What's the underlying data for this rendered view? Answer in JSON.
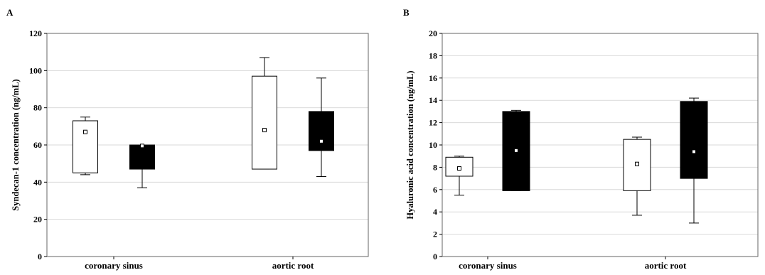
{
  "chart_data": [
    {
      "panel": "A",
      "type": "box",
      "ylabel": "Syndecan-1 concentration (ng/mL)",
      "xlabel": "",
      "categories": [
        "coronary sinus",
        "aortic root"
      ],
      "ylim": [
        0,
        120
      ],
      "yticks": [
        0,
        20,
        40,
        60,
        80,
        100,
        120
      ],
      "grid": "horizontal",
      "boxes": [
        {
          "category": "coronary sinus",
          "fill": "#ffffff",
          "whisker_low": 44,
          "q1": 45,
          "q3": 73,
          "whisker_high": 75,
          "mean": 67
        },
        {
          "category": "coronary sinus",
          "fill": "#000000",
          "whisker_low": 37,
          "q1": 47,
          "q3": 60,
          "whisker_high": 60,
          "mean": 59.5
        },
        {
          "category": "aortic root",
          "fill": "#ffffff",
          "whisker_low": 47,
          "q1": 47,
          "q3": 97,
          "whisker_high": 107,
          "mean": 68
        },
        {
          "category": "aortic root",
          "fill": "#000000",
          "whisker_low": 43,
          "q1": 57,
          "q3": 78,
          "whisker_high": 96,
          "mean": 62
        }
      ]
    },
    {
      "panel": "B",
      "type": "box",
      "ylabel": "Hyaluronic acid concentration (ng/mL)",
      "xlabel": "",
      "categories": [
        "coronary sinus",
        "aortic root"
      ],
      "ylim": [
        0,
        20
      ],
      "yticks": [
        0,
        2,
        4,
        6,
        8,
        10,
        12,
        14,
        16,
        18,
        20
      ],
      "grid": "horizontal",
      "boxes": [
        {
          "category": "coronary sinus",
          "fill": "#ffffff",
          "whisker_low": 5.5,
          "q1": 7.2,
          "q3": 8.9,
          "whisker_high": 9,
          "mean": 7.9
        },
        {
          "category": "coronary sinus",
          "fill": "#000000",
          "whisker_low": 5.9,
          "q1": 5.9,
          "q3": 13,
          "whisker_high": 13.1,
          "mean": 9.5
        },
        {
          "category": "aortic root",
          "fill": "#ffffff",
          "whisker_low": 3.7,
          "q1": 5.9,
          "q3": 10.5,
          "whisker_high": 10.7,
          "mean": 8.3
        },
        {
          "category": "aortic root",
          "fill": "#000000",
          "whisker_low": 3,
          "q1": 7,
          "q3": 13.9,
          "whisker_high": 14.2,
          "mean": 9.4
        }
      ]
    }
  ],
  "colors": {
    "grid": "#d9d9d9",
    "axis": "#000000",
    "box_light": "#ffffff",
    "box_dark": "#000000",
    "mean_marker": "#ffffff"
  }
}
